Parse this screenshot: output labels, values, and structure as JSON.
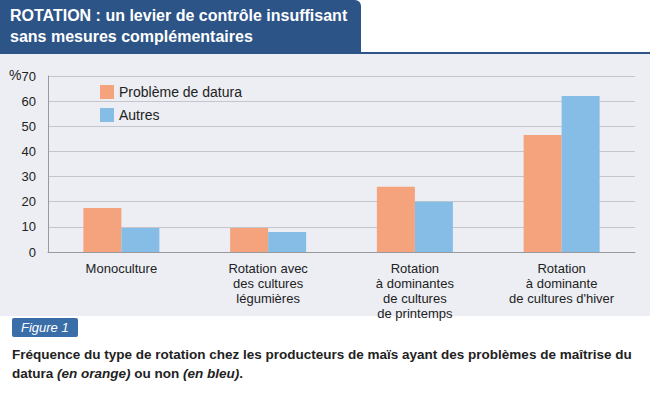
{
  "chart_data": {
    "type": "bar",
    "title": "ROTATION : un levier de contrôle insuffisant\nsans mesures complémentaires",
    "ylabel": "%",
    "categories": [
      "Monoculture",
      "Rotation avec\ndes cultures\nlégumières",
      "Rotation\nà dominantes\nde cultures\nde printemps",
      "Rotation\nà dominante\nde cultures d'hiver"
    ],
    "series": [
      {
        "name": "Problème de datura",
        "color": "#f4a37c",
        "values": [
          17.5,
          9.5,
          26,
          46.5
        ]
      },
      {
        "name": "Autres",
        "color": "#85bde6",
        "values": [
          9.5,
          8,
          20,
          62
        ]
      }
    ],
    "ylim": [
      0,
      70
    ],
    "yticks": [
      0,
      10,
      20,
      30,
      40,
      50,
      60,
      70
    ],
    "grid": true,
    "legend": "top-left",
    "figure_label": "Figure 1",
    "caption": [
      "Fréquence du type de rotation chez les producteurs de maïs ayant des problèmes de maîtrise du datura ",
      "(en orange)",
      " ou non ",
      "(en bleu)",
      "."
    ]
  }
}
